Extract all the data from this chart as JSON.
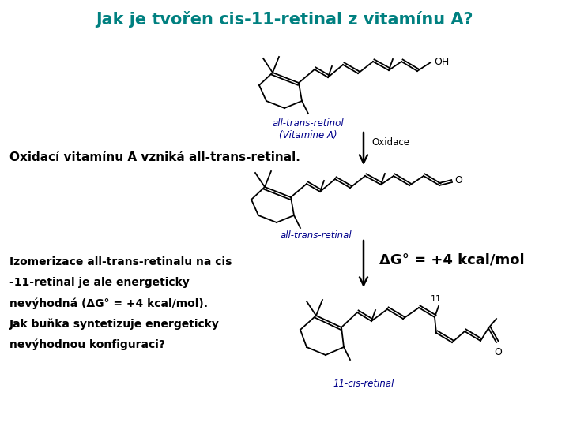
{
  "title": "Jak je tvořen cis-11-retinal z vitamínu A?",
  "title_color": "#008080",
  "title_fontsize": 15,
  "bg_color": "#ffffff",
  "label_retinol": "all-trans-retinol\n(Vitamine A)",
  "label_retinal": "all-trans-retinal",
  "label_cis": "11-cis-retinal",
  "label_oxidace": "Oxidace",
  "label_dg": "ΔG° = +4 kcal/mol",
  "text1": "Oxidací vitamínu A vzniká all-trans-retinal.",
  "text2_line1": "Izomerizace all-trans-retinalu na cis",
  "text2_line2": "-11-retinal je ale energeticky",
  "text2_line3": "nevýhodná (ΔG° = +4 kcal/mol).",
  "text2_line4": "Jak buňka syntetizuje energeticky",
  "text2_line5": "nevýhodnou konfiguraci?",
  "label_color_blue": "#00008B",
  "text_color_black": "#000000",
  "structure_color": "#000000",
  "arrow_color": "#000000"
}
